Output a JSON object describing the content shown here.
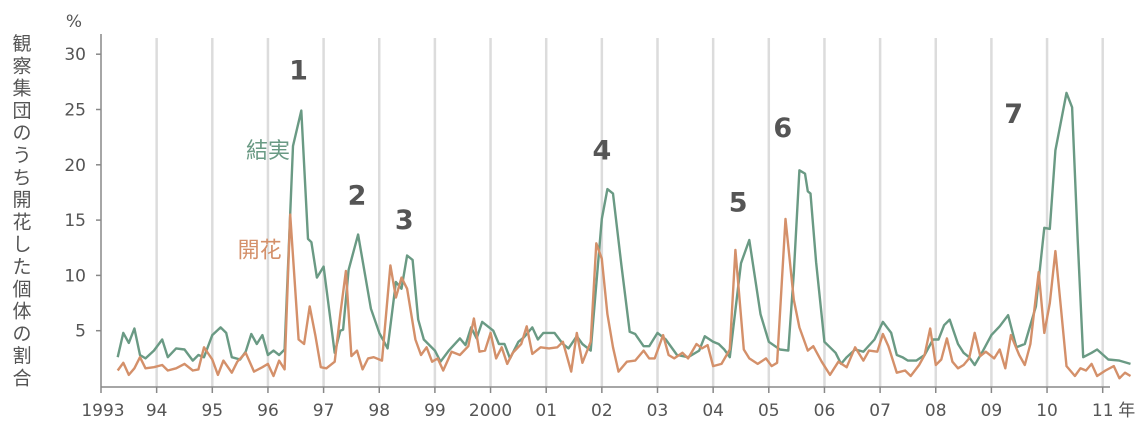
{
  "chart_data": {
    "type": "line",
    "ylabel": "観察集団のうち開花した個体の割合",
    "yunit": "%",
    "xunit": "年",
    "ylim": [
      0,
      31
    ],
    "yticks": [
      5,
      10,
      15,
      20,
      25,
      30
    ],
    "x_tick_labels": [
      "1993",
      "94",
      "95",
      "96",
      "97",
      "98",
      "99",
      "2000",
      "01",
      "02",
      "03",
      "04",
      "05",
      "06",
      "07",
      "08",
      "09",
      "10",
      "11"
    ],
    "grid": "vertical",
    "series": [
      {
        "name": "結実",
        "color": "#6a9a84",
        "points": [
          [
            1993.3,
            2.6
          ],
          [
            1993.4,
            4.8
          ],
          [
            1993.5,
            3.9
          ],
          [
            1993.6,
            5.2
          ],
          [
            1993.7,
            2.8
          ],
          [
            1993.8,
            2.5
          ],
          [
            1993.95,
            3.2
          ],
          [
            1994.1,
            4.2
          ],
          [
            1994.2,
            2.6
          ],
          [
            1994.35,
            3.4
          ],
          [
            1994.5,
            3.3
          ],
          [
            1994.65,
            2.3
          ],
          [
            1994.75,
            2.8
          ],
          [
            1994.85,
            2.6
          ],
          [
            1995.0,
            4.6
          ],
          [
            1995.15,
            5.3
          ],
          [
            1995.25,
            4.8
          ],
          [
            1995.35,
            2.6
          ],
          [
            1995.5,
            2.4
          ],
          [
            1995.6,
            3.1
          ],
          [
            1995.7,
            4.7
          ],
          [
            1995.8,
            3.8
          ],
          [
            1995.9,
            4.6
          ],
          [
            1996.0,
            2.8
          ],
          [
            1996.1,
            3.2
          ],
          [
            1996.2,
            2.8
          ],
          [
            1996.3,
            3.3
          ],
          [
            1996.45,
            21.7
          ],
          [
            1996.6,
            24.9
          ],
          [
            1996.72,
            13.3
          ],
          [
            1996.78,
            13.0
          ],
          [
            1996.88,
            9.8
          ],
          [
            1997.0,
            10.8
          ],
          [
            1997.2,
            3.0
          ],
          [
            1997.3,
            5.0
          ],
          [
            1997.35,
            5.1
          ],
          [
            1997.45,
            10.5
          ],
          [
            1997.62,
            13.7
          ],
          [
            1997.85,
            7.0
          ],
          [
            1998.0,
            4.8
          ],
          [
            1998.15,
            3.4
          ],
          [
            1998.3,
            9.4
          ],
          [
            1998.4,
            8.8
          ],
          [
            1998.5,
            11.8
          ],
          [
            1998.6,
            11.4
          ],
          [
            1998.7,
            6.0
          ],
          [
            1998.8,
            4.2
          ],
          [
            1999.0,
            3.2
          ],
          [
            1999.1,
            2.2
          ],
          [
            1999.25,
            3.2
          ],
          [
            1999.45,
            4.3
          ],
          [
            1999.55,
            3.7
          ],
          [
            1999.65,
            5.3
          ],
          [
            1999.75,
            4.3
          ],
          [
            1999.85,
            5.8
          ],
          [
            2000.05,
            5.0
          ],
          [
            2000.15,
            3.8
          ],
          [
            2000.25,
            3.8
          ],
          [
            2000.35,
            2.5
          ],
          [
            2000.5,
            4.0
          ],
          [
            2000.6,
            4.4
          ],
          [
            2000.75,
            5.3
          ],
          [
            2000.85,
            4.2
          ],
          [
            2000.95,
            4.8
          ],
          [
            2001.15,
            4.8
          ],
          [
            2001.3,
            3.8
          ],
          [
            2001.4,
            3.4
          ],
          [
            2001.55,
            4.5
          ],
          [
            2001.65,
            3.8
          ],
          [
            2001.8,
            3.2
          ],
          [
            2002.0,
            15.1
          ],
          [
            2002.1,
            17.8
          ],
          [
            2002.2,
            17.4
          ],
          [
            2002.35,
            11.0
          ],
          [
            2002.5,
            4.9
          ],
          [
            2002.6,
            4.7
          ],
          [
            2002.75,
            3.6
          ],
          [
            2002.85,
            3.6
          ],
          [
            2003.0,
            4.8
          ],
          [
            2003.15,
            4.2
          ],
          [
            2003.35,
            2.8
          ],
          [
            2003.55,
            2.6
          ],
          [
            2003.75,
            3.2
          ],
          [
            2003.85,
            4.5
          ],
          [
            2004.0,
            4.0
          ],
          [
            2004.1,
            3.8
          ],
          [
            2004.2,
            3.3
          ],
          [
            2004.3,
            2.6
          ],
          [
            2004.5,
            11.1
          ],
          [
            2004.65,
            13.2
          ],
          [
            2004.85,
            6.5
          ],
          [
            2005.0,
            4.0
          ],
          [
            2005.2,
            3.3
          ],
          [
            2005.35,
            3.2
          ],
          [
            2005.45,
            10.2
          ],
          [
            2005.55,
            19.5
          ],
          [
            2005.65,
            19.2
          ],
          [
            2005.7,
            17.6
          ],
          [
            2005.75,
            17.4
          ],
          [
            2005.85,
            11.2
          ],
          [
            2006.0,
            4.0
          ],
          [
            2006.2,
            3.0
          ],
          [
            2006.3,
            2.0
          ],
          [
            2006.4,
            2.6
          ],
          [
            2006.55,
            3.3
          ],
          [
            2006.7,
            3.1
          ],
          [
            2006.9,
            4.2
          ],
          [
            2007.05,
            5.8
          ],
          [
            2007.2,
            4.8
          ],
          [
            2007.3,
            2.8
          ],
          [
            2007.4,
            2.6
          ],
          [
            2007.5,
            2.3
          ],
          [
            2007.65,
            2.3
          ],
          [
            2007.8,
            2.8
          ],
          [
            2007.95,
            4.2
          ],
          [
            2008.05,
            4.2
          ],
          [
            2008.15,
            5.5
          ],
          [
            2008.25,
            6.0
          ],
          [
            2008.4,
            3.8
          ],
          [
            2008.5,
            3.0
          ],
          [
            2008.6,
            2.6
          ],
          [
            2008.7,
            1.9
          ],
          [
            2008.85,
            3.2
          ],
          [
            2009.0,
            4.6
          ],
          [
            2009.15,
            5.4
          ],
          [
            2009.3,
            6.4
          ],
          [
            2009.45,
            3.5
          ],
          [
            2009.6,
            3.8
          ],
          [
            2009.8,
            7.2
          ],
          [
            2009.95,
            14.3
          ],
          [
            2010.05,
            14.2
          ],
          [
            2010.15,
            21.3
          ],
          [
            2010.35,
            26.5
          ],
          [
            2010.45,
            25.2
          ],
          [
            2010.55,
            13.2
          ],
          [
            2010.65,
            2.6
          ],
          [
            2010.8,
            3.0
          ],
          [
            2010.9,
            3.3
          ],
          [
            2011.1,
            2.4
          ],
          [
            2011.3,
            2.3
          ],
          [
            2011.5,
            2.0
          ]
        ]
      },
      {
        "name": "開花",
        "color": "#d4906a",
        "points": [
          [
            1993.3,
            1.4
          ],
          [
            1993.4,
            2.1
          ],
          [
            1993.5,
            1.0
          ],
          [
            1993.6,
            1.6
          ],
          [
            1993.7,
            2.6
          ],
          [
            1993.8,
            1.6
          ],
          [
            1993.95,
            1.7
          ],
          [
            1994.1,
            1.9
          ],
          [
            1994.2,
            1.4
          ],
          [
            1994.35,
            1.6
          ],
          [
            1994.5,
            2.0
          ],
          [
            1994.65,
            1.4
          ],
          [
            1994.75,
            1.5
          ],
          [
            1994.85,
            3.5
          ],
          [
            1995.0,
            2.4
          ],
          [
            1995.1,
            1.0
          ],
          [
            1995.2,
            2.3
          ],
          [
            1995.35,
            1.2
          ],
          [
            1995.45,
            2.2
          ],
          [
            1995.6,
            3.0
          ],
          [
            1995.75,
            1.3
          ],
          [
            1995.9,
            1.7
          ],
          [
            1996.0,
            2.0
          ],
          [
            1996.1,
            0.9
          ],
          [
            1996.2,
            2.3
          ],
          [
            1996.3,
            1.5
          ],
          [
            1996.4,
            15.5
          ],
          [
            1996.55,
            4.2
          ],
          [
            1996.65,
            3.8
          ],
          [
            1996.75,
            7.2
          ],
          [
            1996.85,
            4.6
          ],
          [
            1996.95,
            1.7
          ],
          [
            1997.05,
            1.6
          ],
          [
            1997.2,
            2.2
          ],
          [
            1997.3,
            6.5
          ],
          [
            1997.4,
            10.4
          ],
          [
            1997.5,
            2.7
          ],
          [
            1997.6,
            3.2
          ],
          [
            1997.7,
            1.5
          ],
          [
            1997.8,
            2.5
          ],
          [
            1997.9,
            2.6
          ],
          [
            1998.05,
            2.3
          ],
          [
            1998.2,
            10.9
          ],
          [
            1998.3,
            8.0
          ],
          [
            1998.4,
            9.8
          ],
          [
            1998.5,
            8.8
          ],
          [
            1998.65,
            4.2
          ],
          [
            1998.75,
            2.8
          ],
          [
            1998.85,
            3.5
          ],
          [
            1998.95,
            2.2
          ],
          [
            1999.05,
            2.5
          ],
          [
            1999.15,
            1.4
          ],
          [
            1999.3,
            3.1
          ],
          [
            1999.45,
            2.8
          ],
          [
            1999.6,
            3.6
          ],
          [
            1999.7,
            6.1
          ],
          [
            1999.8,
            3.1
          ],
          [
            1999.9,
            3.2
          ],
          [
            2000.0,
            4.8
          ],
          [
            2000.1,
            2.5
          ],
          [
            2000.2,
            3.5
          ],
          [
            2000.3,
            2.0
          ],
          [
            2000.4,
            3.0
          ],
          [
            2000.55,
            3.8
          ],
          [
            2000.65,
            5.4
          ],
          [
            2000.75,
            2.9
          ],
          [
            2000.9,
            3.5
          ],
          [
            2001.05,
            3.4
          ],
          [
            2001.2,
            3.5
          ],
          [
            2001.3,
            4.0
          ],
          [
            2001.45,
            1.3
          ],
          [
            2001.55,
            4.8
          ],
          [
            2001.65,
            2.1
          ],
          [
            2001.8,
            4.0
          ],
          [
            2001.9,
            12.9
          ],
          [
            2002.0,
            11.5
          ],
          [
            2002.1,
            6.5
          ],
          [
            2002.2,
            3.5
          ],
          [
            2002.3,
            1.3
          ],
          [
            2002.45,
            2.2
          ],
          [
            2002.6,
            2.3
          ],
          [
            2002.75,
            3.2
          ],
          [
            2002.85,
            2.5
          ],
          [
            2002.95,
            2.5
          ],
          [
            2003.1,
            4.6
          ],
          [
            2003.2,
            2.8
          ],
          [
            2003.3,
            2.5
          ],
          [
            2003.45,
            3.0
          ],
          [
            2003.55,
            2.5
          ],
          [
            2003.7,
            3.8
          ],
          [
            2003.8,
            3.4
          ],
          [
            2003.9,
            3.7
          ],
          [
            2004.0,
            1.8
          ],
          [
            2004.15,
            2.0
          ],
          [
            2004.3,
            3.3
          ],
          [
            2004.4,
            12.3
          ],
          [
            2004.55,
            3.3
          ],
          [
            2004.65,
            2.5
          ],
          [
            2004.8,
            2.0
          ],
          [
            2004.95,
            2.5
          ],
          [
            2005.05,
            1.8
          ],
          [
            2005.15,
            2.1
          ],
          [
            2005.3,
            15.1
          ],
          [
            2005.45,
            7.8
          ],
          [
            2005.55,
            5.3
          ],
          [
            2005.7,
            3.2
          ],
          [
            2005.8,
            3.6
          ],
          [
            2005.95,
            2.2
          ],
          [
            2006.1,
            1.0
          ],
          [
            2006.25,
            2.2
          ],
          [
            2006.4,
            1.7
          ],
          [
            2006.55,
            3.5
          ],
          [
            2006.7,
            2.3
          ],
          [
            2006.8,
            3.2
          ],
          [
            2006.95,
            3.1
          ],
          [
            2007.05,
            4.7
          ],
          [
            2007.15,
            3.6
          ],
          [
            2007.3,
            1.2
          ],
          [
            2007.45,
            1.4
          ],
          [
            2007.55,
            0.9
          ],
          [
            2007.7,
            1.9
          ],
          [
            2007.8,
            2.8
          ],
          [
            2007.9,
            5.2
          ],
          [
            2008.0,
            1.9
          ],
          [
            2008.1,
            2.4
          ],
          [
            2008.2,
            4.3
          ],
          [
            2008.3,
            2.2
          ],
          [
            2008.4,
            1.6
          ],
          [
            2008.5,
            1.9
          ],
          [
            2008.6,
            2.5
          ],
          [
            2008.7,
            4.8
          ],
          [
            2008.8,
            2.7
          ],
          [
            2008.9,
            3.1
          ],
          [
            2009.05,
            2.5
          ],
          [
            2009.15,
            3.3
          ],
          [
            2009.25,
            1.6
          ],
          [
            2009.35,
            4.6
          ],
          [
            2009.5,
            2.8
          ],
          [
            2009.6,
            1.9
          ],
          [
            2009.7,
            3.8
          ],
          [
            2009.85,
            10.3
          ],
          [
            2009.95,
            4.8
          ],
          [
            2010.05,
            7.5
          ],
          [
            2010.15,
            12.2
          ],
          [
            2010.25,
            7.0
          ],
          [
            2010.35,
            1.8
          ],
          [
            2010.5,
            0.9
          ],
          [
            2010.6,
            1.6
          ],
          [
            2010.7,
            1.4
          ],
          [
            2010.8,
            2.0
          ],
          [
            2010.9,
            0.9
          ],
          [
            2011.05,
            1.4
          ],
          [
            2011.2,
            1.8
          ],
          [
            2011.3,
            0.7
          ],
          [
            2011.4,
            1.2
          ],
          [
            2011.5,
            0.9
          ]
        ]
      }
    ],
    "annotations": [
      {
        "text": "1",
        "x": 1996.55,
        "y": 27.7
      },
      {
        "text": "2",
        "x": 1997.6,
        "y": 16.4
      },
      {
        "text": "3",
        "x": 1998.45,
        "y": 14.2
      },
      {
        "text": "4",
        "x": 2002.0,
        "y": 20.5
      },
      {
        "text": "5",
        "x": 2004.45,
        "y": 15.8
      },
      {
        "text": "6",
        "x": 2005.25,
        "y": 22.5
      },
      {
        "text": "7",
        "x": 2009.4,
        "y": 23.8
      }
    ],
    "series_labels": [
      {
        "series": "結実",
        "x": 1996.0,
        "y": 20.6
      },
      {
        "series": "開花",
        "x": 1995.85,
        "y": 11.6
      }
    ]
  }
}
